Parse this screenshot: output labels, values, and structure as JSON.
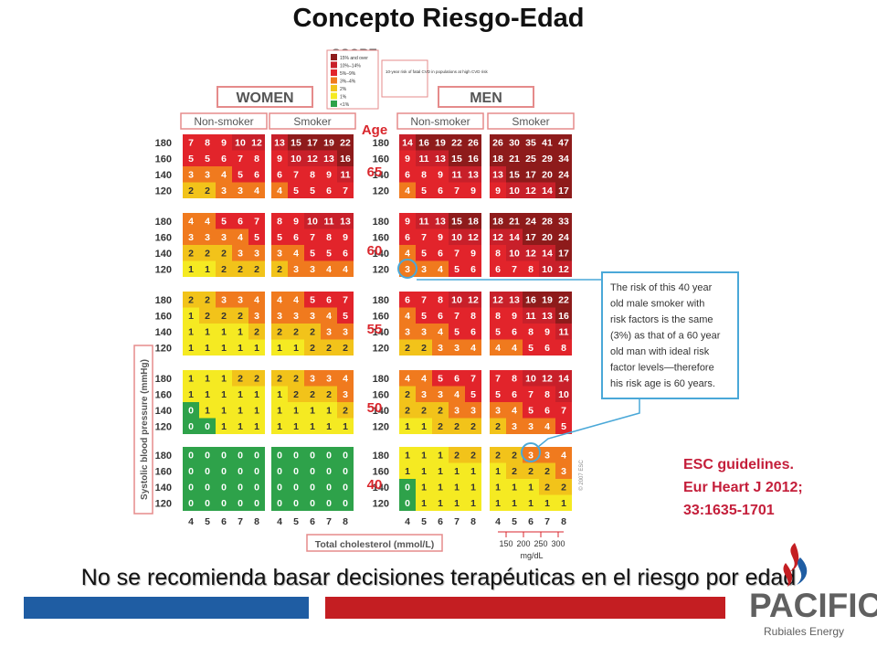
{
  "slide": {
    "title": "Concepto Riesgo-Edad",
    "footer_text": "No se recomienda basar decisiones terapéuticas en el riesgo por edad",
    "reference": [
      "ESC guidelines.",
      "Eur Heart J 2012;",
      "33:1635-1701"
    ]
  },
  "score_chart": {
    "logo": "SCORE",
    "legend": {
      "items": [
        "15% and over",
        "10%–14%",
        "5%–9%",
        "3%–4%",
        "2%",
        "1%",
        "<1%"
      ],
      "colors": [
        "#8e1b1b",
        "#c8202a",
        "#e2242b",
        "#f07a1e",
        "#f2c31a",
        "#f5ea22",
        "#2ea24a"
      ],
      "description": "10-year risk of fatal CVD in populations at high CVD risk"
    },
    "women_label": "WOMEN",
    "men_label": "MEN",
    "group_labels": [
      "Non-smoker",
      "Smoker",
      "Non-smoker",
      "Smoker"
    ],
    "age_header": "Age",
    "ages": [
      "65",
      "60",
      "55",
      "50",
      "40"
    ],
    "sbp_values": [
      "180",
      "160",
      "140",
      "120"
    ],
    "cholesterol_values": [
      "4",
      "5",
      "6",
      "7",
      "8"
    ],
    "mgdl_values": [
      "150",
      "200",
      "250",
      "300"
    ],
    "mgdl_unit": "mg/dL",
    "y_axis_label": "Systolic blood pressure (mmHg)",
    "x_axis_label": "Total cholesterol (mmol/L)",
    "copyright": "© 2007 ESC",
    "callout_text": [
      "The risk of this 40 year",
      "old male smoker with",
      "risk factors is the same",
      "(3%) as that of a 60 year",
      "old man with ideal risk",
      "factor levels—therefore",
      "his risk age is 60 years."
    ],
    "blocks": [
      [
        [
          [
            7,
            8,
            9,
            10,
            12
          ],
          [
            5,
            5,
            6,
            7,
            8
          ],
          [
            3,
            3,
            4,
            5,
            6
          ],
          [
            2,
            2,
            3,
            3,
            4
          ]
        ],
        [
          [
            13,
            15,
            17,
            19,
            22
          ],
          [
            9,
            10,
            12,
            13,
            16
          ],
          [
            6,
            7,
            8,
            9,
            11
          ],
          [
            4,
            5,
            5,
            6,
            7
          ]
        ],
        [
          [
            14,
            16,
            19,
            22,
            26
          ],
          [
            9,
            11,
            13,
            15,
            16
          ],
          [
            6,
            8,
            9,
            11,
            13
          ],
          [
            4,
            5,
            6,
            7,
            9
          ]
        ],
        [
          [
            26,
            30,
            35,
            41,
            47
          ],
          [
            18,
            21,
            25,
            29,
            34
          ],
          [
            13,
            15,
            17,
            20,
            24
          ],
          [
            9,
            10,
            12,
            14,
            17
          ]
        ]
      ],
      [
        [
          [
            4,
            4,
            5,
            6,
            7
          ],
          [
            3,
            3,
            3,
            4,
            5
          ],
          [
            2,
            2,
            2,
            3,
            3
          ],
          [
            1,
            1,
            2,
            2,
            2
          ]
        ],
        [
          [
            8,
            9,
            10,
            11,
            13
          ],
          [
            5,
            6,
            7,
            8,
            9
          ],
          [
            3,
            4,
            5,
            5,
            6
          ],
          [
            2,
            3,
            3,
            4,
            4
          ]
        ],
        [
          [
            9,
            11,
            13,
            15,
            18
          ],
          [
            6,
            7,
            9,
            10,
            12
          ],
          [
            4,
            5,
            6,
            7,
            9
          ],
          [
            3,
            3,
            4,
            5,
            6
          ]
        ],
        [
          [
            18,
            21,
            24,
            28,
            33
          ],
          [
            12,
            14,
            17,
            20,
            24
          ],
          [
            8,
            10,
            12,
            14,
            17
          ],
          [
            6,
            7,
            8,
            10,
            12
          ]
        ]
      ],
      [
        [
          [
            2,
            2,
            3,
            3,
            4
          ],
          [
            1,
            2,
            2,
            2,
            3
          ],
          [
            1,
            1,
            1,
            1,
            2
          ],
          [
            1,
            1,
            1,
            1,
            1
          ]
        ],
        [
          [
            4,
            4,
            5,
            6,
            7
          ],
          [
            3,
            3,
            3,
            4,
            5
          ],
          [
            2,
            2,
            2,
            3,
            3
          ],
          [
            1,
            1,
            2,
            2,
            2
          ]
        ],
        [
          [
            6,
            7,
            8,
            10,
            12
          ],
          [
            4,
            5,
            6,
            7,
            8
          ],
          [
            3,
            3,
            4,
            5,
            6
          ],
          [
            2,
            2,
            3,
            3,
            4
          ]
        ],
        [
          [
            12,
            13,
            16,
            19,
            22
          ],
          [
            8,
            9,
            11,
            13,
            16
          ],
          [
            5,
            6,
            8,
            9,
            11
          ],
          [
            4,
            4,
            5,
            6,
            8
          ]
        ]
      ],
      [
        [
          [
            1,
            1,
            1,
            2,
            2
          ],
          [
            1,
            1,
            1,
            1,
            1
          ],
          [
            0,
            1,
            1,
            1,
            1
          ],
          [
            0,
            0,
            1,
            1,
            1
          ]
        ],
        [
          [
            2,
            2,
            3,
            3,
            4
          ],
          [
            1,
            2,
            2,
            2,
            3
          ],
          [
            1,
            1,
            1,
            1,
            2
          ],
          [
            1,
            1,
            1,
            1,
            1
          ]
        ],
        [
          [
            4,
            4,
            5,
            6,
            7
          ],
          [
            2,
            3,
            3,
            4,
            5
          ],
          [
            2,
            2,
            2,
            3,
            3
          ],
          [
            1,
            1,
            2,
            2,
            2
          ]
        ],
        [
          [
            7,
            8,
            10,
            12,
            14
          ],
          [
            5,
            6,
            7,
            8,
            10
          ],
          [
            3,
            4,
            5,
            6,
            7
          ],
          [
            2,
            3,
            3,
            4,
            5
          ]
        ]
      ],
      [
        [
          [
            0,
            0,
            0,
            0,
            0
          ],
          [
            0,
            0,
            0,
            0,
            0
          ],
          [
            0,
            0,
            0,
            0,
            0
          ],
          [
            0,
            0,
            0,
            0,
            0
          ]
        ],
        [
          [
            0,
            0,
            0,
            0,
            0
          ],
          [
            0,
            0,
            0,
            0,
            0
          ],
          [
            0,
            0,
            0,
            0,
            0
          ],
          [
            0,
            0,
            0,
            0,
            0
          ]
        ],
        [
          [
            1,
            1,
            1,
            2,
            2
          ],
          [
            1,
            1,
            1,
            1,
            1
          ],
          [
            0,
            1,
            1,
            1,
            1
          ],
          [
            0,
            1,
            1,
            1,
            1
          ]
        ],
        [
          [
            2,
            2,
            3,
            3,
            4
          ],
          [
            1,
            2,
            2,
            2,
            3
          ],
          [
            1,
            1,
            1,
            2,
            2
          ],
          [
            1,
            1,
            1,
            1,
            1
          ]
        ]
      ]
    ]
  },
  "brand": {
    "name": "PACIFIC",
    "subtitle": "Rubiales Energy",
    "colors": {
      "blue": "#1f5da3",
      "red": "#c41e22",
      "gray": "#606060"
    }
  }
}
